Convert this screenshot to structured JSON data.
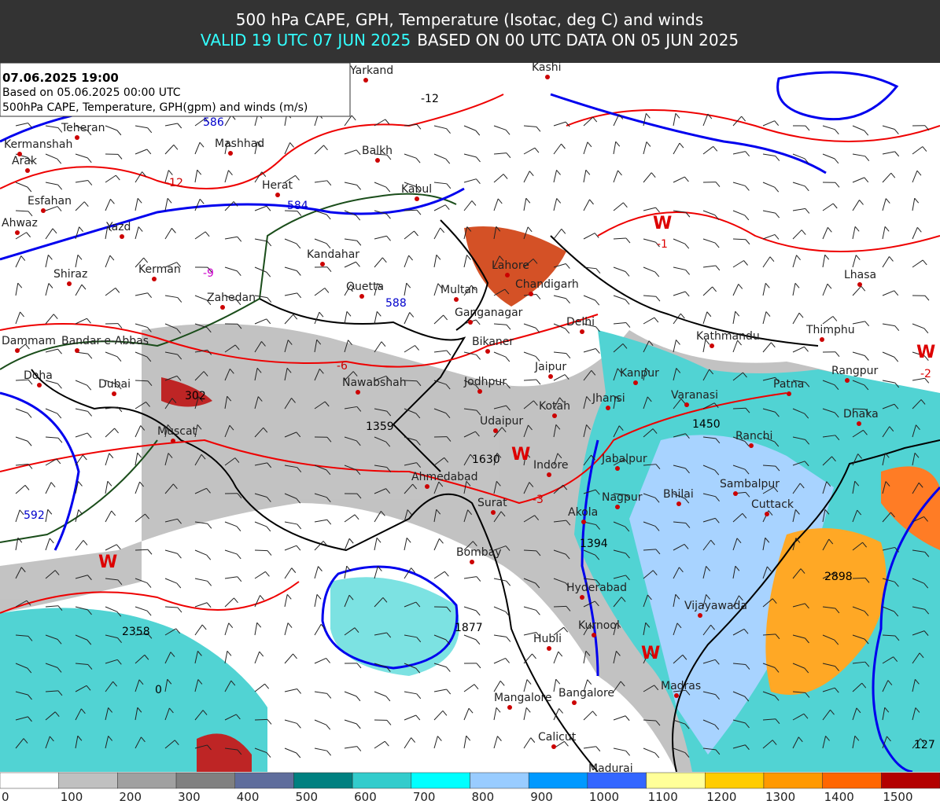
{
  "header": {
    "title": "500 hPa CAPE, GPH, Temperature (Isotac, deg C) and winds",
    "valid": "VALID 19 UTC 07 JUN 2025",
    "based": "BASED ON 00 UTC DATA ON 05 JUN 2025"
  },
  "info": {
    "line1": "07.06.2025 19:00",
    "line2": "Based on 05.06.2025 00:00 UTC",
    "line3": "500hPa CAPE, Temperature, GPH(gpm) and winds (m/s)"
  },
  "cities": [
    "Teheran",
    "Kermanshah",
    "Arak",
    "Esfahan",
    "Ahwaz",
    "Yazd",
    "Mashhad",
    "Herat",
    "Balkh",
    "Kabul",
    "Kandahar",
    "Shiraz",
    "Kerman",
    "Zahedan",
    "Quetta",
    "Multan",
    "Lahore",
    "Chandigarh",
    "Ganganagar",
    "Delhi",
    "Bikaner",
    "Jaipur",
    "Jodhpur",
    "Kanpur",
    "Varanasi",
    "Patna",
    "Kathmandu",
    "Thimphu",
    "Lhasa",
    "Rangpur",
    "Dhaka",
    "Ranchi",
    "Jhansi",
    "Kotah",
    "Udaipur",
    "Nawabshah",
    "Dubai",
    "Doha",
    "Dammam",
    "Bandar-e-Abbas",
    "Muscat",
    "Ahmedabad",
    "Indore",
    "Jabalpur",
    "Surat",
    "Nagpur",
    "Bhilai",
    "Sambalpur",
    "Cuttack",
    "Akola",
    "Bombay",
    "Hyderabad",
    "Vijayawada",
    "Kurnool",
    "Hubli",
    "Bangalore",
    "Madras",
    "Mangalore",
    "Calicut",
    "Madurai",
    "Kashi",
    "Yarkand"
  ],
  "map_labels": [
    "-12",
    "584",
    "586",
    "-9",
    "588",
    "-6",
    "1359",
    "1630",
    "W",
    "-3",
    "1394",
    "1450",
    "W",
    "-1",
    "W",
    "-2",
    "W",
    "2358",
    "1877",
    "W",
    "2898",
    "127",
    "0",
    "302",
    "-12",
    "592"
  ],
  "legend": {
    "labels": [
      0,
      100,
      200,
      300,
      400,
      500,
      600,
      700,
      800,
      900,
      1000,
      1100,
      1200,
      1300,
      1400,
      1500
    ],
    "colors": [
      "#ffffff",
      "#c0c0c0",
      "#a0a0a0",
      "#808080",
      "#5f6d9c",
      "#008080",
      "#33cccc",
      "#00ffff",
      "#99ccff",
      "#0099ff",
      "#3366ff",
      "#ffff99",
      "#ffcc00",
      "#ff9900",
      "#ff6600",
      "#b30000"
    ]
  }
}
